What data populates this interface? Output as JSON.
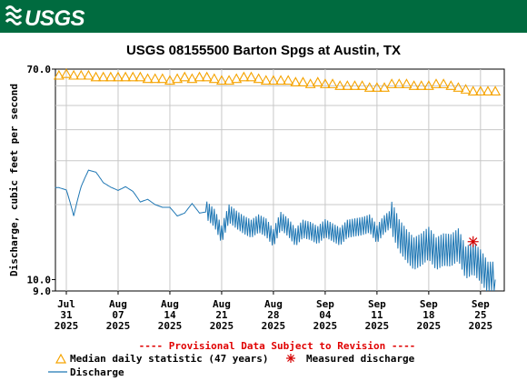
{
  "header": {
    "logo_text": "USGS",
    "brand_color": "#006b3f"
  },
  "chart_data": {
    "type": "line",
    "title": "USGS 08155500 Barton Spgs at Austin, TX",
    "ylabel": "Discharge, cubic feet per second",
    "xlabel": "",
    "ylim": [
      9.0,
      70.0
    ],
    "y_scale": "log",
    "y_ticks": [
      {
        "value": 70.0,
        "label": "70.0"
      },
      {
        "value": 10.0,
        "label": "10.0"
      },
      {
        "value": 9.0,
        "label": "9.0"
      }
    ],
    "x_ticks": [
      {
        "month": "Jul",
        "day": "31",
        "year": "2025"
      },
      {
        "month": "Aug",
        "day": "07",
        "year": "2025"
      },
      {
        "month": "Aug",
        "day": "14",
        "year": "2025"
      },
      {
        "month": "Aug",
        "day": "21",
        "year": "2025"
      },
      {
        "month": "Aug",
        "day": "28",
        "year": "2025"
      },
      {
        "month": "Sep",
        "day": "04",
        "year": "2025"
      },
      {
        "month": "Sep",
        "day": "11",
        "year": "2025"
      },
      {
        "month": "Sep",
        "day": "18",
        "year": "2025"
      },
      {
        "month": "Sep",
        "day": "25",
        "year": "2025"
      }
    ],
    "x_range": [
      "2025-07-29",
      "2025-09-27"
    ],
    "grid": true,
    "colors": {
      "median": "#f5a300",
      "discharge": "#1f77b4",
      "measured": "#d40000",
      "note": "#e00000"
    },
    "series": [
      {
        "name": "Median daily statistic (47 years)",
        "marker": "triangle",
        "x": [
          "2025-07-29",
          "2025-07-30",
          "2025-07-31",
          "2025-08-01",
          "2025-08-02",
          "2025-08-03",
          "2025-08-04",
          "2025-08-05",
          "2025-08-06",
          "2025-08-07",
          "2025-08-08",
          "2025-08-09",
          "2025-08-10",
          "2025-08-11",
          "2025-08-12",
          "2025-08-13",
          "2025-08-14",
          "2025-08-15",
          "2025-08-16",
          "2025-08-17",
          "2025-08-18",
          "2025-08-19",
          "2025-08-20",
          "2025-08-21",
          "2025-08-22",
          "2025-08-23",
          "2025-08-24",
          "2025-08-25",
          "2025-08-26",
          "2025-08-27",
          "2025-08-28",
          "2025-08-29",
          "2025-08-30",
          "2025-08-31",
          "2025-09-01",
          "2025-09-02",
          "2025-09-03",
          "2025-09-04",
          "2025-09-05",
          "2025-09-06",
          "2025-09-07",
          "2025-09-08",
          "2025-09-09",
          "2025-09-10",
          "2025-09-11",
          "2025-09-12",
          "2025-09-13",
          "2025-09-14",
          "2025-09-15",
          "2025-09-16",
          "2025-09-17",
          "2025-09-18",
          "2025-09-19",
          "2025-09-20",
          "2025-09-21",
          "2025-09-22",
          "2025-09-23",
          "2025-09-24",
          "2025-09-25",
          "2025-09-26",
          "2025-09-27"
        ],
        "values": [
          67,
          66,
          67,
          66,
          66,
          66,
          65,
          65,
          65,
          65,
          65,
          65,
          65,
          64,
          64,
          64,
          63,
          64,
          65,
          64,
          65,
          65,
          64,
          63,
          63,
          64,
          65,
          65,
          64,
          63,
          63,
          63,
          63,
          62,
          62,
          61,
          62,
          61,
          61,
          60,
          60,
          60,
          60,
          59,
          59,
          59,
          61,
          61,
          61,
          60,
          60,
          60,
          61,
          61,
          60,
          59,
          58,
          57,
          57,
          57,
          57
        ]
      },
      {
        "name": "Discharge",
        "x": [
          "2025-07-29",
          "2025-07-30",
          "2025-07-31",
          "2025-08-01",
          "2025-08-02",
          "2025-08-03",
          "2025-08-04",
          "2025-08-05",
          "2025-08-06",
          "2025-08-07",
          "2025-08-08",
          "2025-08-09",
          "2025-08-10",
          "2025-08-11",
          "2025-08-12",
          "2025-08-13",
          "2025-08-14",
          "2025-08-15",
          "2025-08-16",
          "2025-08-17",
          "2025-08-18",
          "2025-08-19",
          "2025-08-20",
          "2025-08-21",
          "2025-08-22",
          "2025-08-23",
          "2025-08-24",
          "2025-08-25",
          "2025-08-26",
          "2025-08-27",
          "2025-08-28",
          "2025-08-29",
          "2025-08-30",
          "2025-08-31",
          "2025-09-01",
          "2025-09-02",
          "2025-09-03",
          "2025-09-04",
          "2025-09-05",
          "2025-09-06",
          "2025-09-07",
          "2025-09-08",
          "2025-09-09",
          "2025-09-10",
          "2025-09-11",
          "2025-09-12",
          "2025-09-13",
          "2025-09-14",
          "2025-09-15",
          "2025-09-16",
          "2025-09-17",
          "2025-09-18",
          "2025-09-19",
          "2025-09-20",
          "2025-09-21",
          "2025-09-22",
          "2025-09-23",
          "2025-09-24",
          "2025-09-25",
          "2025-09-26",
          "2025-09-27"
        ],
        "values": [
          23.5,
          23.4,
          22.9,
          18.0,
          23.6,
          27.5,
          27.0,
          24.5,
          23.5,
          22.8,
          23.6,
          22.6,
          20.5,
          21.0,
          20.0,
          19.5,
          19.5,
          18.0,
          18.5,
          20.2,
          18.5,
          18.7,
          17.5,
          15.0,
          18.2,
          17.2,
          16.4,
          15.8,
          16.6,
          16.0,
          14.5,
          17.0,
          16.0,
          14.6,
          15.8,
          15.5,
          14.9,
          15.9,
          15.3,
          14.7,
          15.8,
          16.0,
          16.2,
          16.6,
          15.0,
          16.5,
          17.4,
          14.8,
          13.5,
          12.5,
          13.0,
          13.8,
          12.5,
          13.0,
          12.9,
          13.6,
          11.5,
          12.0,
          11.2,
          10.0,
          10.0
        ]
      }
    ],
    "measured": {
      "name": "Measured discharge",
      "points": [
        {
          "x": "2025-09-24",
          "y": 14.2
        }
      ]
    },
    "legend": {
      "position": "bottom",
      "note": "---- Provisional Data Subject to Revision ----",
      "items": [
        {
          "label": "Median daily statistic (47 years)",
          "symbol": "triangle"
        },
        {
          "label": "Measured discharge",
          "symbol": "asterisk"
        },
        {
          "label": "Discharge",
          "symbol": "line"
        }
      ]
    }
  }
}
